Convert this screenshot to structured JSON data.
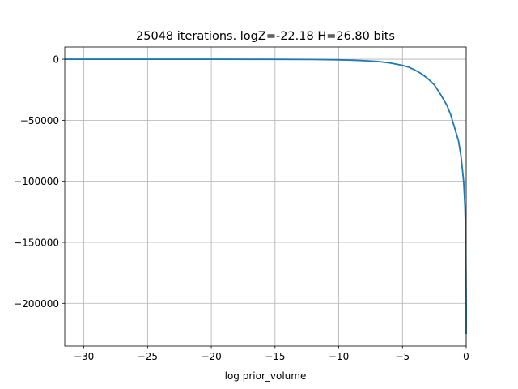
{
  "chart_data": {
    "type": "line",
    "title": "25048 iterations. logZ=-22.18 H=26.80 bits",
    "xlabel": "log prior_volume",
    "ylabel": "",
    "xlim": [
      -31.5,
      0
    ],
    "ylim": [
      -235000,
      10000
    ],
    "grid": true,
    "legend": "none",
    "xticks": [
      {
        "value": -30,
        "label": "−30"
      },
      {
        "value": -25,
        "label": "−25"
      },
      {
        "value": -20,
        "label": "−20"
      },
      {
        "value": -15,
        "label": "−15"
      },
      {
        "value": -10,
        "label": "−10"
      },
      {
        "value": -5,
        "label": "−5"
      },
      {
        "value": 0,
        "label": "0"
      }
    ],
    "yticks": [
      {
        "value": 0,
        "label": "0"
      },
      {
        "value": -50000,
        "label": "−50000"
      },
      {
        "value": -100000,
        "label": "−100000"
      },
      {
        "value": -150000,
        "label": "−150000"
      },
      {
        "value": -200000,
        "label": "−200000"
      }
    ],
    "series": [
      {
        "color": "#1f77b4",
        "points": [
          [
            -31.5,
            0
          ],
          [
            -20,
            0
          ],
          [
            -15,
            -100
          ],
          [
            -12,
            -200
          ],
          [
            -10,
            -500
          ],
          [
            -9,
            -800
          ],
          [
            -8,
            -1200
          ],
          [
            -7,
            -1800
          ],
          [
            -6,
            -3000
          ],
          [
            -5,
            -5000
          ],
          [
            -4.5,
            -6500
          ],
          [
            -4,
            -9000
          ],
          [
            -3.5,
            -12000
          ],
          [
            -3,
            -16000
          ],
          [
            -2.5,
            -21000
          ],
          [
            -2,
            -29000
          ],
          [
            -1.5,
            -38000
          ],
          [
            -1.2,
            -46000
          ],
          [
            -1,
            -53000
          ],
          [
            -0.8,
            -60000
          ],
          [
            -0.6,
            -67000
          ],
          [
            -0.4,
            -80000
          ],
          [
            -0.3,
            -90000
          ],
          [
            -0.2,
            -100000
          ],
          [
            -0.1,
            -120000
          ],
          [
            -0.05,
            -140000
          ],
          [
            -0.02,
            -170000
          ],
          [
            0,
            -200000
          ],
          [
            0,
            -225000
          ]
        ]
      }
    ]
  }
}
